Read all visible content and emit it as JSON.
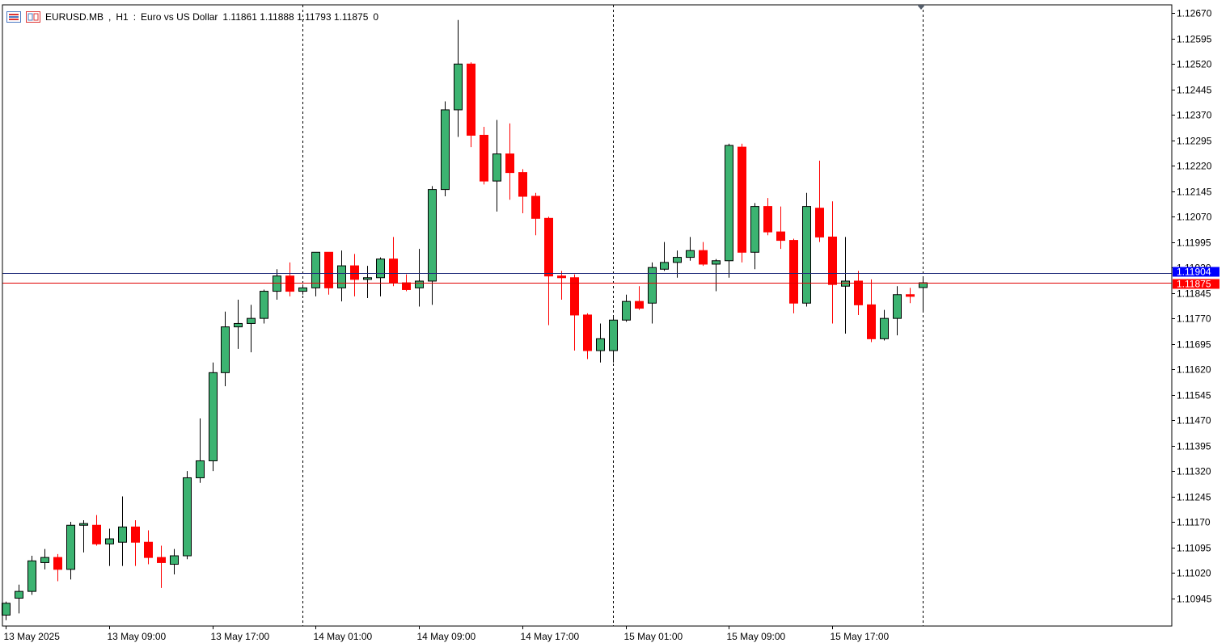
{
  "header": {
    "symbol": "EURUSD.MB",
    "timeframe": "H1",
    "description": "Euro vs US Dollar",
    "ohlc_text": "1.11861 1.11888 1.11793 1.11875",
    "volume_text": "0"
  },
  "colors": {
    "bull": "#3cb371",
    "bear": "#ff0000",
    "outline": "#000000",
    "ask_line": "#1e2a7a",
    "bid_line": "#e00000",
    "ask_tag": "#0000ff",
    "bid_tag": "#ff0000"
  },
  "chart_data": {
    "type": "candlestick",
    "title": "",
    "xlabel": "",
    "ylabel": "",
    "ylim": [
      1.1087,
      1.12685
    ],
    "y_ticks": [
      "1.12670",
      "1.12595",
      "1.12520",
      "1.12445",
      "1.12370",
      "1.12295",
      "1.12220",
      "1.12145",
      "1.12070",
      "1.11995",
      "1.11920",
      "1.11845",
      "1.11770",
      "1.11695",
      "1.11620",
      "1.11545",
      "1.11470",
      "1.11395",
      "1.11320",
      "1.11245",
      "1.11170",
      "1.11095",
      "1.11020",
      "1.10945"
    ],
    "x_labels": [
      {
        "index": 0,
        "text": "13 May 2025"
      },
      {
        "index": 8,
        "text": "13 May 09:00"
      },
      {
        "index": 16,
        "text": "13 May 17:00"
      },
      {
        "index": 24,
        "text": "14 May 01:00"
      },
      {
        "index": 32,
        "text": "14 May 09:00"
      },
      {
        "index": 40,
        "text": "14 May 17:00"
      },
      {
        "index": 48,
        "text": "15 May 01:00"
      },
      {
        "index": 56,
        "text": "15 May 09:00"
      },
      {
        "index": 64,
        "text": "15 May 17:00"
      }
    ],
    "separators": [
      23,
      47,
      71
    ],
    "ask_price": "1.11904",
    "bid_price": "1.11875",
    "candles": [
      [
        1.10895,
        1.10935,
        1.1088,
        1.1093
      ],
      [
        1.10945,
        1.10985,
        1.109,
        1.10965
      ],
      [
        1.10965,
        1.1107,
        1.10955,
        1.11055
      ],
      [
        1.1105,
        1.1109,
        1.1103,
        1.11065
      ],
      [
        1.11065,
        1.11075,
        1.10995,
        1.1103
      ],
      [
        1.1103,
        1.1117,
        1.11,
        1.1116
      ],
      [
        1.1116,
        1.11175,
        1.1108,
        1.11165
      ],
      [
        1.1116,
        1.1119,
        1.111,
        1.11105
      ],
      [
        1.11105,
        1.1115,
        1.1104,
        1.1112
      ],
      [
        1.1111,
        1.11245,
        1.1104,
        1.11155
      ],
      [
        1.11155,
        1.11175,
        1.1104,
        1.1111
      ],
      [
        1.1111,
        1.11145,
        1.11045,
        1.11065
      ],
      [
        1.11065,
        1.111,
        1.10975,
        1.1105
      ],
      [
        1.11045,
        1.1109,
        1.11015,
        1.1107
      ],
      [
        1.1107,
        1.1132,
        1.1106,
        1.113
      ],
      [
        1.113,
        1.11475,
        1.11285,
        1.1135
      ],
      [
        1.1135,
        1.1164,
        1.1132,
        1.1161
      ],
      [
        1.1161,
        1.1179,
        1.1157,
        1.11745
      ],
      [
        1.11745,
        1.11825,
        1.1168,
        1.11755
      ],
      [
        1.11755,
        1.1181,
        1.1167,
        1.1177
      ],
      [
        1.1177,
        1.11855,
        1.11755,
        1.1185
      ],
      [
        1.1185,
        1.11915,
        1.11825,
        1.11895
      ],
      [
        1.11895,
        1.11935,
        1.11835,
        1.1185
      ],
      [
        1.1185,
        1.1187,
        1.1184,
        1.1186
      ],
      [
        1.1186,
        1.11965,
        1.11835,
        1.11965
      ],
      [
        1.11965,
        1.1196,
        1.1184,
        1.1186
      ],
      [
        1.1186,
        1.1197,
        1.1182,
        1.11925
      ],
      [
        1.11925,
        1.1196,
        1.11835,
        1.11885
      ],
      [
        1.11885,
        1.11925,
        1.1183,
        1.1189
      ],
      [
        1.1189,
        1.1195,
        1.11835,
        1.11945
      ],
      [
        1.11945,
        1.1201,
        1.11865,
        1.11875
      ],
      [
        1.11875,
        1.119,
        1.1185,
        1.11855
      ],
      [
        1.1186,
        1.11975,
        1.11805,
        1.1188
      ],
      [
        1.1188,
        1.1216,
        1.1181,
        1.1215
      ],
      [
        1.1215,
        1.1241,
        1.1213,
        1.12385
      ],
      [
        1.12385,
        1.1265,
        1.12305,
        1.1252
      ],
      [
        1.1252,
        1.12525,
        1.12275,
        1.1231
      ],
      [
        1.1231,
        1.12335,
        1.12165,
        1.12175
      ],
      [
        1.12175,
        1.12355,
        1.12085,
        1.12255
      ],
      [
        1.12255,
        1.12345,
        1.1212,
        1.122
      ],
      [
        1.122,
        1.1221,
        1.1208,
        1.1213
      ],
      [
        1.1213,
        1.1214,
        1.12015,
        1.12065
      ],
      [
        1.12065,
        1.1207,
        1.1175,
        1.11895
      ],
      [
        1.11895,
        1.1191,
        1.11825,
        1.1189
      ],
      [
        1.1189,
        1.119,
        1.11675,
        1.1178
      ],
      [
        1.1178,
        1.11785,
        1.1165,
        1.11675
      ],
      [
        1.11675,
        1.11755,
        1.1164,
        1.1171
      ],
      [
        1.11675,
        1.1178,
        1.1164,
        1.11765
      ],
      [
        1.11765,
        1.1184,
        1.1176,
        1.1182
      ],
      [
        1.1182,
        1.11865,
        1.11795,
        1.118
      ],
      [
        1.11815,
        1.11935,
        1.11755,
        1.1192
      ],
      [
        1.11915,
        1.11995,
        1.1191,
        1.11935
      ],
      [
        1.11935,
        1.1197,
        1.1189,
        1.1195
      ],
      [
        1.1195,
        1.1201,
        1.1194,
        1.1197
      ],
      [
        1.1197,
        1.11995,
        1.11925,
        1.1193
      ],
      [
        1.1193,
        1.11945,
        1.1185,
        1.1194
      ],
      [
        1.1194,
        1.12285,
        1.1189,
        1.1228
      ],
      [
        1.12275,
        1.12285,
        1.11935,
        1.11965
      ],
      [
        1.11965,
        1.1211,
        1.11915,
        1.121
      ],
      [
        1.121,
        1.12125,
        1.12015,
        1.12025
      ],
      [
        1.12025,
        1.121,
        1.11975,
        1.12
      ],
      [
        1.12,
        1.12005,
        1.11785,
        1.11815
      ],
      [
        1.11815,
        1.1214,
        1.11805,
        1.121
      ],
      [
        1.12095,
        1.12235,
        1.11995,
        1.1201
      ],
      [
        1.1201,
        1.12115,
        1.11755,
        1.1187
      ],
      [
        1.11865,
        1.1201,
        1.11725,
        1.1188
      ],
      [
        1.1188,
        1.1191,
        1.1178,
        1.1181
      ],
      [
        1.1181,
        1.11885,
        1.117,
        1.1171
      ],
      [
        1.1171,
        1.11795,
        1.11705,
        1.1177
      ],
      [
        1.1177,
        1.11865,
        1.1172,
        1.1184
      ],
      [
        1.1184,
        1.1186,
        1.11815,
        1.11835
      ],
      [
        1.11861,
        1.11888,
        1.11793,
        1.11875
      ]
    ]
  }
}
